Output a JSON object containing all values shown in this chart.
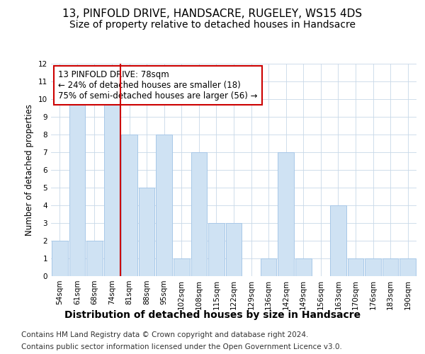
{
  "title": "13, PINFOLD DRIVE, HANDSACRE, RUGELEY, WS15 4DS",
  "subtitle": "Size of property relative to detached houses in Handsacre",
  "xlabel_main": "Distribution of detached houses by size in Handsacre",
  "ylabel": "Number of detached properties",
  "categories": [
    "54sqm",
    "61sqm",
    "68sqm",
    "74sqm",
    "81sqm",
    "88sqm",
    "95sqm",
    "102sqm",
    "108sqm",
    "115sqm",
    "122sqm",
    "129sqm",
    "136sqm",
    "142sqm",
    "149sqm",
    "156sqm",
    "163sqm",
    "170sqm",
    "176sqm",
    "183sqm",
    "190sqm"
  ],
  "values": [
    2,
    10,
    2,
    10,
    8,
    5,
    8,
    1,
    7,
    3,
    3,
    0,
    1,
    7,
    1,
    0,
    4,
    1,
    1,
    1,
    1
  ],
  "bar_color": "#cfe2f3",
  "bar_edge_color": "#a8c8e8",
  "grid_color": "#c8d8e8",
  "vline_x": 3.5,
  "vline_color": "#cc0000",
  "annotation_text": "13 PINFOLD DRIVE: 78sqm\n← 24% of detached houses are smaller (18)\n75% of semi-detached houses are larger (56) →",
  "annotation_box_color": "#cc0000",
  "footer_line1": "Contains HM Land Registry data © Crown copyright and database right 2024.",
  "footer_line2": "Contains public sector information licensed under the Open Government Licence v3.0.",
  "ylim": [
    0,
    12
  ],
  "title_fontsize": 11,
  "subtitle_fontsize": 10,
  "footer_fontsize": 7.5,
  "annotation_fontsize": 8.5,
  "tick_fontsize": 7.5,
  "ylabel_fontsize": 8.5,
  "xlabel_fontsize": 10
}
